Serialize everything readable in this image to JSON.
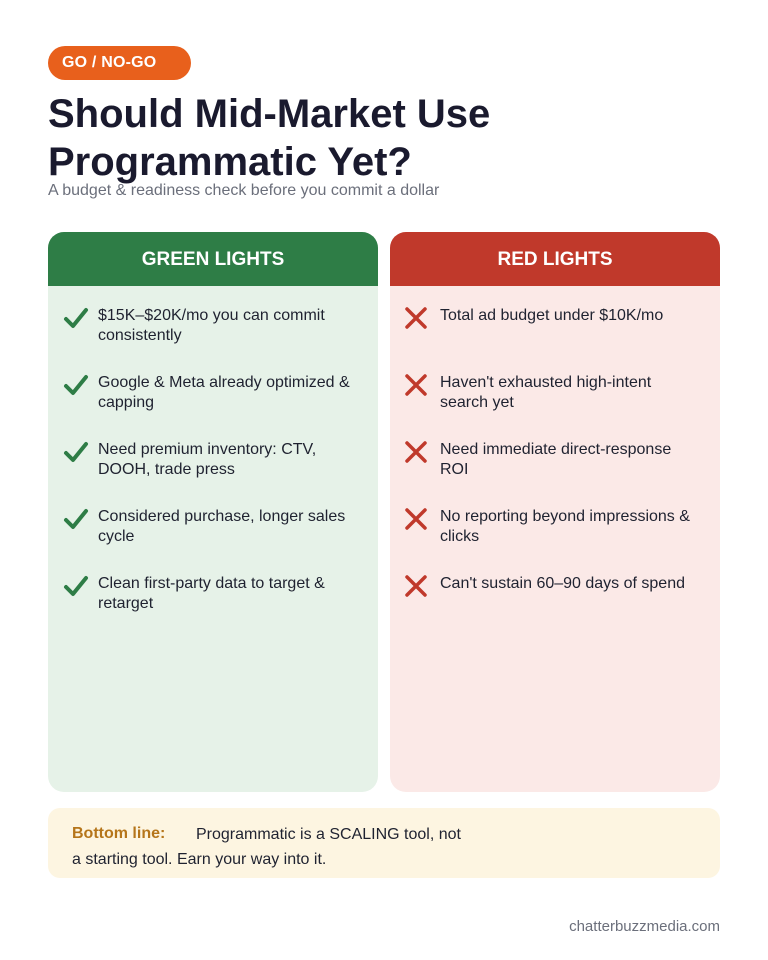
{
  "badge": "GO / NO-GO",
  "title": "Should Mid-Market Use Programmatic Yet?",
  "subtitle": "A budget & readiness check before you commit a dollar",
  "green_panel": {
    "header": "GREEN LIGHTS",
    "color": "#2e7d46",
    "icon": "check-icon",
    "items": [
      "$15K–$20K/mo you can commit consistently",
      "Google & Meta already optimized & capping",
      "Need premium inventory: CTV, DOOH, trade press",
      "Considered purchase, longer sales cycle",
      "Clean first-party data to target & retarget"
    ]
  },
  "red_panel": {
    "header": "RED LIGHTS",
    "color": "#c0392b",
    "icon": "x-icon",
    "items": [
      "Total ad budget under $10K/mo",
      "Haven't exhausted high-intent search yet",
      "Need immediate direct-response ROI",
      "No reporting beyond impressions & clicks",
      "Can't sustain 60–90 days of spend"
    ]
  },
  "bottom_line": {
    "label": "Bottom line:",
    "text": "Programmatic is a SCALING tool, not a starting tool. Earn your way into it."
  },
  "footer": "chatterbuzzmedia.com",
  "colors": {
    "badge": "#e8601c",
    "title": "#1a1a2e",
    "green_bg": "#e6f2e8",
    "red_bg": "#fbe9e7",
    "bottom_bg": "#fdf5e1",
    "bottom_label": "#b5751a"
  }
}
